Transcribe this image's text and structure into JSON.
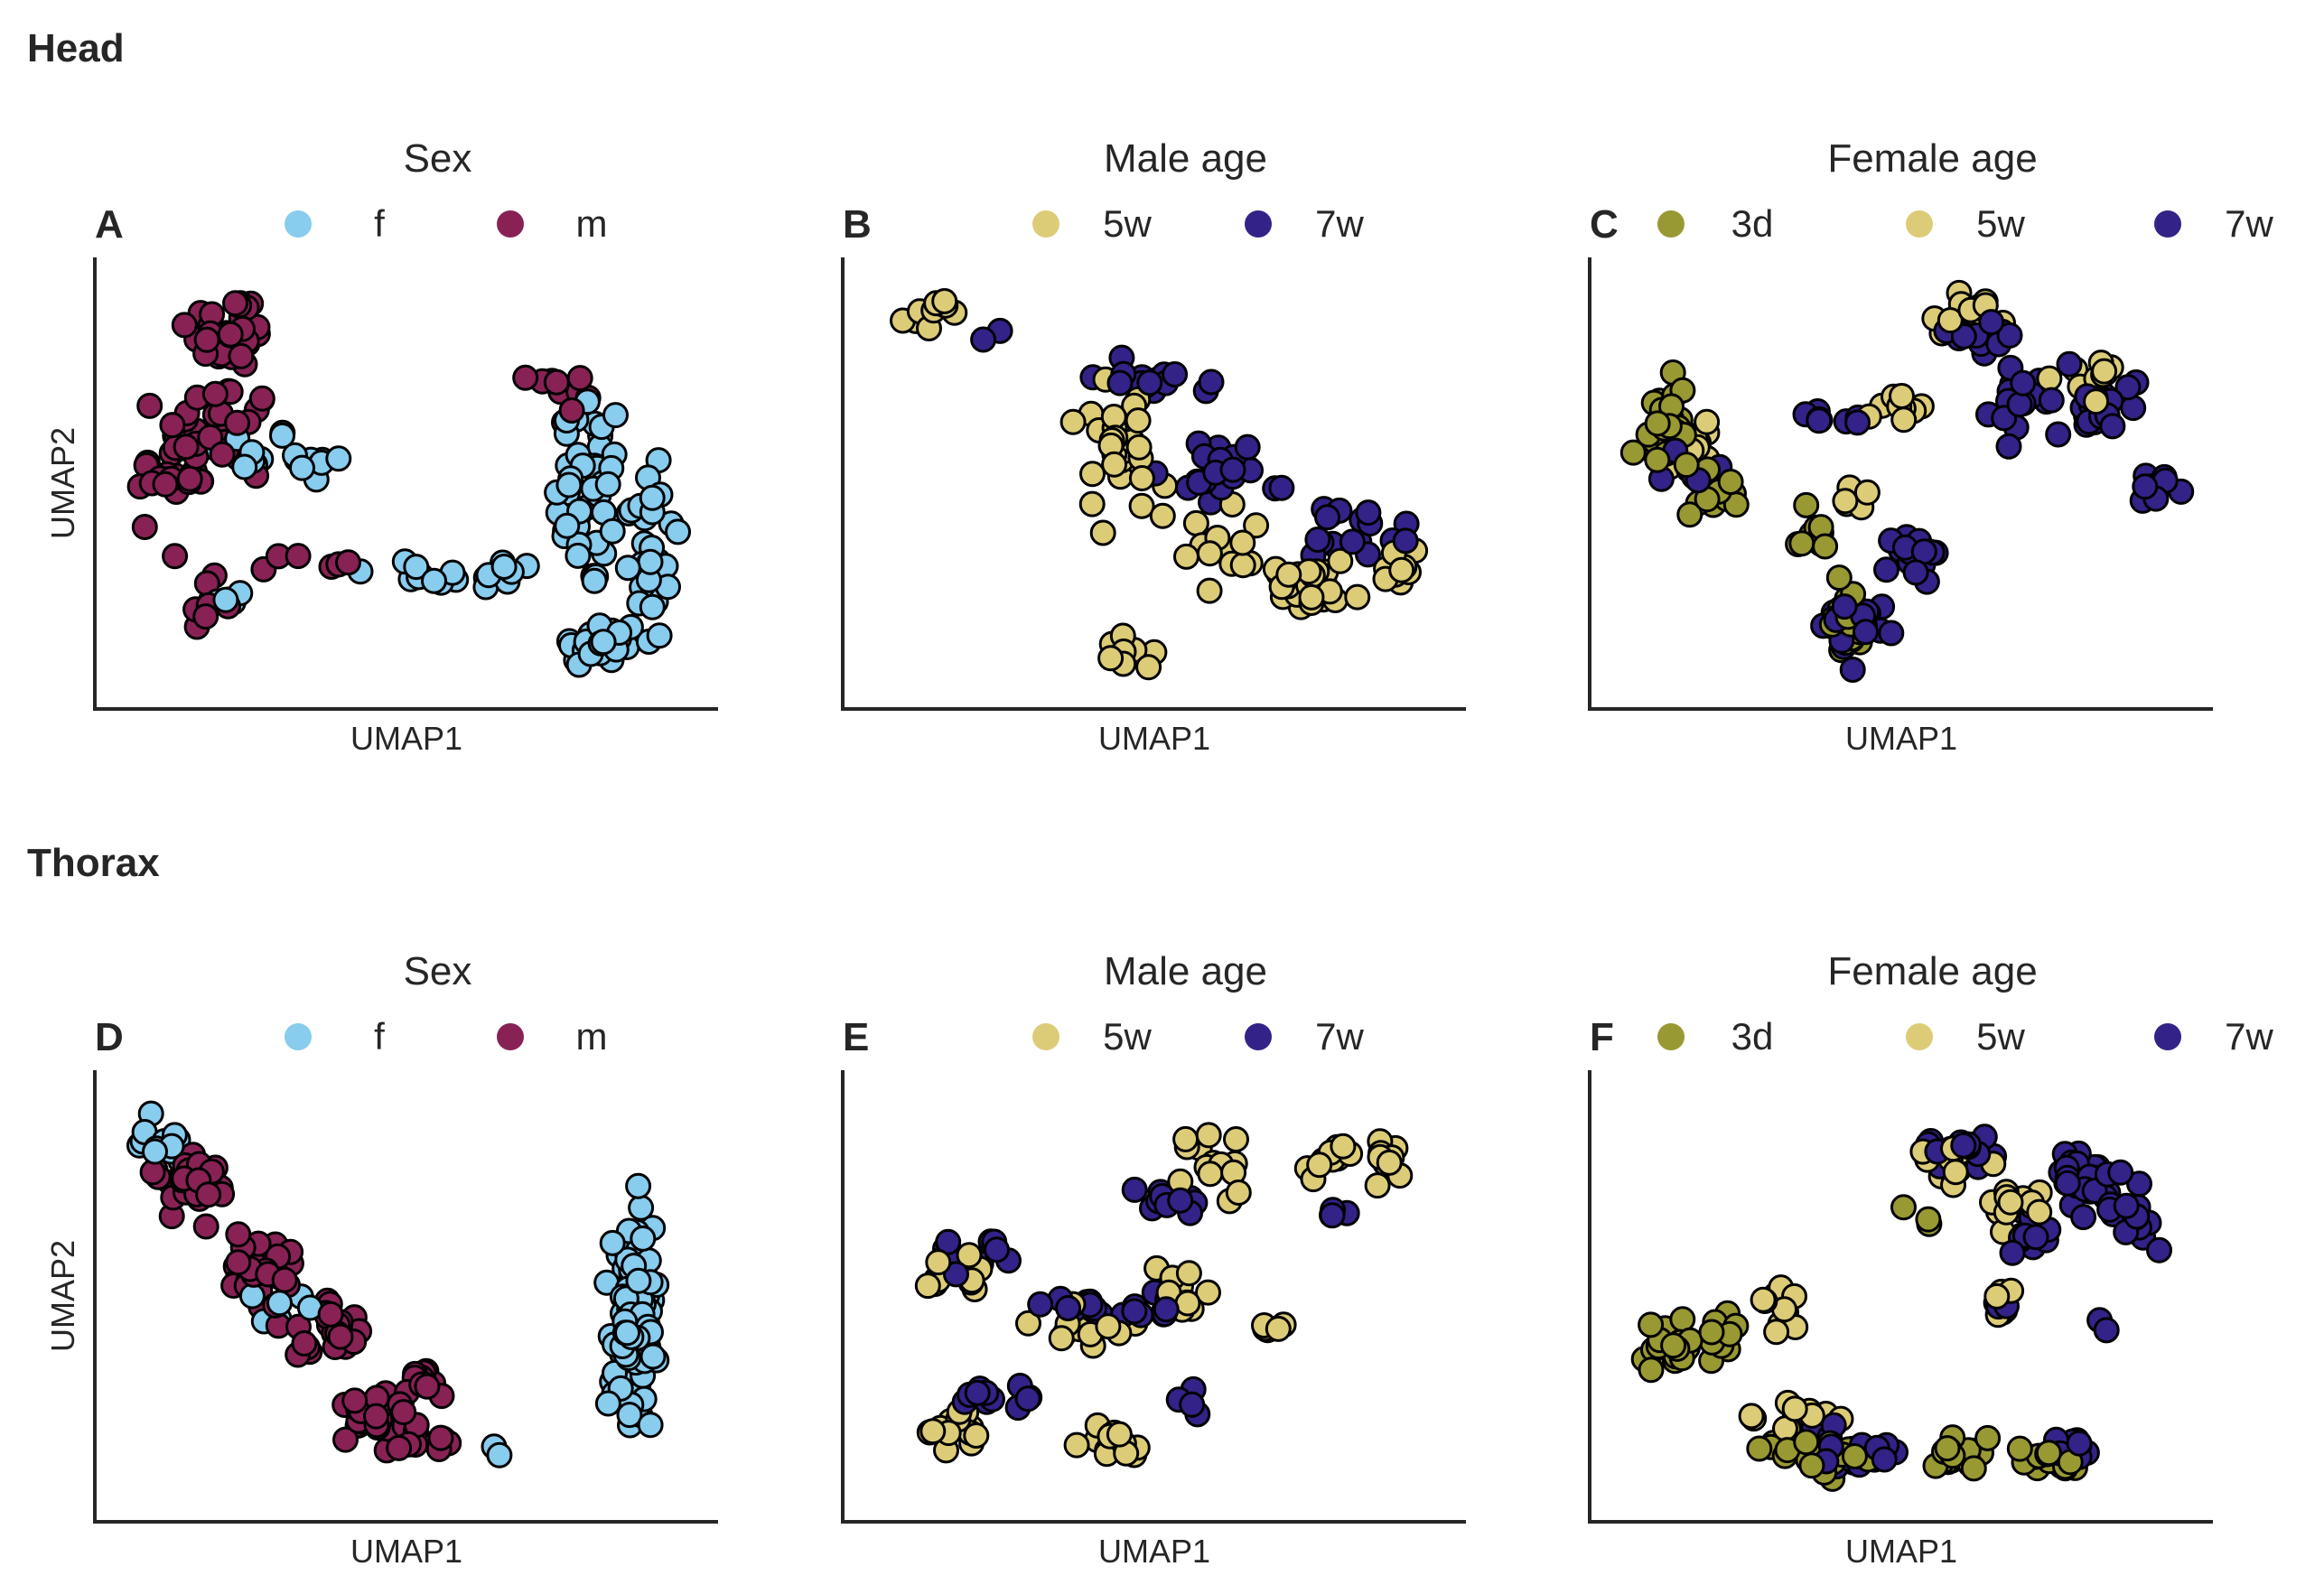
{
  "figure": {
    "rows": [
      {
        "title": "Head"
      },
      {
        "title": "Thorax"
      }
    ]
  },
  "colors": {
    "f": "#88ccee",
    "m": "#882255",
    "5w": "#ddcc77",
    "7w": "#332288",
    "3d": "#999933"
  },
  "chart_data": [
    {
      "type": "scatter",
      "panel": "A",
      "title": "Sex",
      "xlabel": "UMAP1",
      "ylabel": "UMAP2",
      "grid": false,
      "legend_placement": "top",
      "series": [
        {
          "name": "f",
          "color": "#88ccee",
          "clusters": [
            [
              0.22,
              0.58,
              0.08,
              0.05,
              10
            ],
            [
              0.33,
              0.55,
              0.07,
              0.04,
              8
            ],
            [
              0.53,
              0.27,
              0.1,
              0.04,
              10
            ],
            [
              0.67,
              0.27,
              0.06,
              0.04,
              8
            ],
            [
              0.82,
              0.48,
              0.05,
              0.22,
              40
            ],
            [
              0.92,
              0.35,
              0.05,
              0.22,
              30
            ],
            [
              0.84,
              0.1,
              0.06,
              0.05,
              30
            ],
            [
              0.2,
              0.2,
              0.05,
              0.04,
              4
            ]
          ]
        },
        {
          "name": "m",
          "color": "#882255",
          "clusters": [
            [
              0.19,
              0.88,
              0.06,
              0.08,
              30
            ],
            [
              0.17,
              0.62,
              0.08,
              0.12,
              40
            ],
            [
              0.09,
              0.53,
              0.05,
              0.1,
              20
            ],
            [
              0.15,
              0.2,
              0.04,
              0.05,
              10
            ],
            [
              0.34,
              0.3,
              0.06,
              0.03,
              6
            ],
            [
              0.76,
              0.72,
              0.04,
              0.06,
              10
            ]
          ]
        }
      ]
    },
    {
      "type": "scatter",
      "panel": "B",
      "title": "Male age",
      "xlabel": "UMAP1",
      "ylabel": "",
      "grid": false,
      "legend_placement": "top",
      "series": [
        {
          "name": "5w",
          "color": "#ddcc77",
          "clusters": [
            [
              0.11,
              0.92,
              0.05,
              0.03,
              10
            ],
            [
              0.43,
              0.6,
              0.07,
              0.12,
              30
            ],
            [
              0.77,
              0.25,
              0.08,
              0.05,
              30
            ],
            [
              0.93,
              0.3,
              0.03,
              0.05,
              10
            ],
            [
              0.45,
              0.08,
              0.03,
              0.04,
              10
            ],
            [
              0.62,
              0.35,
              0.09,
              0.06,
              14
            ]
          ]
        },
        {
          "name": "7w",
          "color": "#332288",
          "clusters": [
            [
              0.22,
              0.88,
              0.02,
              0.02,
              2
            ],
            [
              0.49,
              0.75,
              0.08,
              0.03,
              16
            ],
            [
              0.6,
              0.52,
              0.1,
              0.1,
              25
            ],
            [
              0.82,
              0.38,
              0.08,
              0.08,
              14
            ],
            [
              0.93,
              0.36,
              0.02,
              0.03,
              4
            ]
          ]
        }
      ]
    },
    {
      "type": "scatter",
      "panel": "C",
      "title": "Female age",
      "xlabel": "UMAP1",
      "ylabel": "",
      "grid": false,
      "legend_placement": "top",
      "series": [
        {
          "name": "3d",
          "color": "#999933",
          "clusters": [
            [
              0.09,
              0.65,
              0.04,
              0.1,
              30
            ],
            [
              0.17,
              0.48,
              0.05,
              0.05,
              10
            ],
            [
              0.35,
              0.36,
              0.04,
              0.05,
              10
            ],
            [
              0.41,
              0.15,
              0.04,
              0.06,
              25
            ]
          ]
        },
        {
          "name": "5w",
          "color": "#ddcc77",
          "clusters": [
            [
              0.13,
              0.6,
              0.05,
              0.08,
              14
            ],
            [
              0.48,
              0.7,
              0.05,
              0.04,
              10
            ],
            [
              0.62,
              0.92,
              0.05,
              0.03,
              14
            ],
            [
              0.83,
              0.78,
              0.04,
              0.05,
              10
            ],
            [
              0.42,
              0.45,
              0.03,
              0.04,
              8
            ]
          ]
        },
        {
          "name": "7w",
          "color": "#332288",
          "clusters": [
            [
              0.62,
              0.88,
              0.04,
              0.03,
              12
            ],
            [
              0.7,
              0.72,
              0.05,
              0.08,
              20
            ],
            [
              0.85,
              0.68,
              0.04,
              0.06,
              18
            ],
            [
              0.95,
              0.5,
              0.03,
              0.04,
              10
            ],
            [
              0.52,
              0.32,
              0.06,
              0.04,
              16
            ],
            [
              0.43,
              0.14,
              0.05,
              0.06,
              20
            ],
            [
              0.38,
              0.65,
              0.05,
              0.03,
              8
            ],
            [
              0.13,
              0.55,
              0.04,
              0.05,
              10
            ]
          ]
        }
      ]
    },
    {
      "type": "scatter",
      "panel": "D",
      "title": "Sex",
      "xlabel": "UMAP1",
      "ylabel": "UMAP2",
      "grid": false,
      "legend_placement": "top",
      "series": [
        {
          "name": "f",
          "color": "#88ccee",
          "clusters": [
            [
              0.07,
              0.88,
              0.04,
              0.06,
              12
            ],
            [
              0.9,
              0.45,
              0.04,
              0.22,
              110
            ],
            [
              0.64,
              0.12,
              0.03,
              0.02,
              2
            ],
            [
              0.28,
              0.46,
              0.04,
              0.06,
              8
            ]
          ]
        },
        {
          "name": "m",
          "color": "#882255",
          "clusters": [
            [
              0.12,
              0.78,
              0.05,
              0.07,
              30
            ],
            [
              0.25,
              0.58,
              0.06,
              0.08,
              30
            ],
            [
              0.36,
              0.42,
              0.05,
              0.06,
              25
            ],
            [
              0.45,
              0.2,
              0.06,
              0.06,
              30
            ],
            [
              0.53,
              0.3,
              0.03,
              0.06,
              10
            ],
            [
              0.55,
              0.13,
              0.05,
              0.03,
              10
            ]
          ]
        }
      ]
    },
    {
      "type": "scatter",
      "panel": "E",
      "title": "Male age",
      "xlabel": "UMAP1",
      "ylabel": "",
      "grid": false,
      "legend_placement": "top",
      "series": [
        {
          "name": "5w",
          "color": "#ddcc77",
          "clusters": [
            [
              0.14,
              0.55,
              0.06,
              0.05,
              12
            ],
            [
              0.15,
              0.18,
              0.06,
              0.05,
              15
            ],
            [
              0.38,
              0.42,
              0.06,
              0.04,
              12
            ],
            [
              0.42,
              0.13,
              0.06,
              0.04,
              14
            ],
            [
              0.6,
              0.82,
              0.06,
              0.08,
              15
            ],
            [
              0.82,
              0.83,
              0.05,
              0.04,
              12
            ],
            [
              0.91,
              0.85,
              0.03,
              0.04,
              8
            ],
            [
              0.55,
              0.52,
              0.04,
              0.06,
              10
            ],
            [
              0.7,
              0.4,
              0.04,
              0.05,
              5
            ]
          ]
        },
        {
          "name": "7w",
          "color": "#332288",
          "clusters": [
            [
              0.18,
              0.6,
              0.05,
              0.05,
              10
            ],
            [
              0.22,
              0.25,
              0.05,
              0.03,
              12
            ],
            [
              0.36,
              0.48,
              0.06,
              0.04,
              10
            ],
            [
              0.5,
              0.48,
              0.04,
              0.04,
              10
            ],
            [
              0.52,
              0.75,
              0.06,
              0.05,
              12
            ],
            [
              0.81,
              0.7,
              0.04,
              0.02,
              4
            ],
            [
              0.57,
              0.25,
              0.03,
              0.03,
              4
            ]
          ]
        }
      ]
    },
    {
      "type": "scatter",
      "panel": "F",
      "title": "Female age",
      "xlabel": "UMAP1",
      "ylabel": "",
      "grid": false,
      "legend_placement": "top",
      "series": [
        {
          "name": "3d",
          "color": "#999933",
          "clusters": [
            [
              0.09,
              0.38,
              0.04,
              0.04,
              20
            ],
            [
              0.18,
              0.4,
              0.04,
              0.05,
              10
            ],
            [
              0.36,
              0.1,
              0.07,
              0.04,
              30
            ],
            [
              0.6,
              0.1,
              0.05,
              0.03,
              20
            ],
            [
              0.77,
              0.09,
              0.05,
              0.03,
              16
            ],
            [
              0.52,
              0.7,
              0.02,
              0.02,
              3
            ]
          ]
        },
        {
          "name": "5w",
          "color": "#ddcc77",
          "clusters": [
            [
              0.28,
              0.48,
              0.05,
              0.05,
              10
            ],
            [
              0.32,
              0.2,
              0.06,
              0.03,
              12
            ],
            [
              0.58,
              0.82,
              0.05,
              0.05,
              12
            ],
            [
              0.7,
              0.72,
              0.05,
              0.05,
              12
            ],
            [
              0.68,
              0.48,
              0.02,
              0.04,
              5
            ]
          ]
        },
        {
          "name": "7w",
          "color": "#332288",
          "clusters": [
            [
              0.61,
              0.86,
              0.05,
              0.04,
              15
            ],
            [
              0.82,
              0.8,
              0.06,
              0.08,
              30
            ],
            [
              0.9,
              0.7,
              0.04,
              0.06,
              14
            ],
            [
              0.72,
              0.65,
              0.04,
              0.05,
              12
            ],
            [
              0.45,
              0.1,
              0.05,
              0.03,
              12
            ],
            [
              0.8,
              0.13,
              0.04,
              0.04,
              10
            ],
            [
              0.68,
              0.47,
              0.02,
              0.03,
              4
            ],
            [
              0.85,
              0.44,
              0.01,
              0.02,
              2
            ],
            [
              0.38,
              0.14,
              0.03,
              0.03,
              6
            ]
          ]
        }
      ]
    }
  ]
}
